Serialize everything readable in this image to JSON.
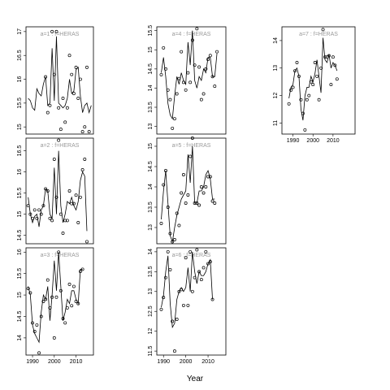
{
  "xlabel": "Year",
  "chart_data": [
    {
      "type": "line",
      "title": "a=1 : f=HERAS",
      "x": [
        1988,
        1989,
        1990,
        1991,
        1992,
        1993,
        1994,
        1995,
        1996,
        1997,
        1998,
        1999,
        2000,
        2001,
        2002,
        2003,
        2004,
        2005,
        2006,
        2007,
        2008,
        2009,
        2010,
        2011,
        2012,
        2013,
        2014,
        2015,
        2016,
        2017
      ],
      "xlim": [
        1987,
        2018
      ],
      "ylim": [
        14.85,
        17.1
      ],
      "yticks": [
        15.0,
        15.5,
        16.0,
        16.5,
        17.0
      ],
      "series": [
        {
          "style": "points",
          "color": "#000000",
          "values": [
            null,
            null,
            null,
            null,
            null,
            null,
            null,
            null,
            16.05,
            15.3,
            15.45,
            17.0,
            16.1,
            17.0,
            15.4,
            14.95,
            15.6,
            15.1,
            15.4,
            16.5,
            16.1,
            15.7,
            16.25,
            15.6,
            16.0,
            14.9,
            15.0,
            16.25,
            14.9,
            null
          ]
        },
        {
          "style": "line",
          "color": "#000000",
          "values": [
            15.6,
            15.55,
            15.4,
            15.35,
            15.8,
            15.7,
            15.65,
            15.9,
            16.05,
            15.45,
            15.5,
            16.65,
            15.55,
            16.9,
            15.5,
            15.45,
            15.4,
            15.45,
            15.6,
            16.0,
            15.7,
            15.75,
            16.2,
            16.25,
            15.65,
            15.3,
            15.45,
            15.5,
            15.3,
            15.45
          ]
        }
      ]
    },
    {
      "type": "line",
      "title": "a=2 : f=HERAS",
      "x": [
        1988,
        1989,
        1990,
        1991,
        1992,
        1993,
        1994,
        1995,
        1996,
        1997,
        1998,
        1999,
        2000,
        2001,
        2002,
        2003,
        2004,
        2005,
        2006,
        2007,
        2008,
        2009,
        2010,
        2011,
        2012,
        2013,
        2014,
        2015,
        2016,
        2017
      ],
      "xlim": [
        1987,
        2018
      ],
      "ylim": [
        14.3,
        16.8
      ],
      "yticks": [
        14.5,
        15.0,
        15.5,
        16.0,
        16.5
      ],
      "series": [
        {
          "style": "points",
          "color": "#000000",
          "values": [
            15.2,
            15.0,
            14.9,
            15.1,
            14.9,
            15.1,
            15.0,
            15.2,
            15.6,
            15.55,
            14.9,
            14.85,
            16.3,
            15.4,
            16.75,
            15.0,
            14.55,
            14.85,
            14.85,
            15.55,
            15.25,
            15.25,
            15.45,
            14.8,
            15.4,
            16.05,
            16.3,
            14.35,
            null,
            null
          ]
        },
        {
          "style": "line",
          "color": "#000000",
          "values": [
            15.4,
            15.0,
            14.8,
            14.95,
            15.0,
            14.7,
            15.1,
            15.2,
            15.6,
            15.55,
            15.0,
            14.9,
            16.1,
            15.0,
            16.5,
            15.2,
            14.8,
            15.0,
            15.3,
            15.25,
            15.4,
            15.2,
            15.1,
            15.3,
            15.8,
            16.0,
            15.9,
            14.6,
            null,
            null
          ]
        }
      ]
    },
    {
      "type": "line",
      "title": "a=3 : f=HERAS",
      "x": [
        1988,
        1989,
        1990,
        1991,
        1992,
        1993,
        1994,
        1995,
        1996,
        1997,
        1998,
        1999,
        2000,
        2001,
        2002,
        2003,
        2004,
        2005,
        2006,
        2007,
        2008,
        2009,
        2010,
        2011,
        2012,
        2013,
        2014,
        2015,
        2016,
        2017
      ],
      "xlim": [
        1987,
        2018
      ],
      "ylim": [
        13.6,
        16.1
      ],
      "yticks": [
        14.0,
        14.5,
        15.0,
        15.5,
        16.0
      ],
      "xticks": [
        1990,
        2000,
        2010
      ],
      "series": [
        {
          "style": "points",
          "color": "#000000",
          "values": [
            15.15,
            15.05,
            14.35,
            14.15,
            14.3,
            13.65,
            14.5,
            14.85,
            14.9,
            15.35,
            14.7,
            14.95,
            14.0,
            14.95,
            16.0,
            15.1,
            14.45,
            14.35,
            14.7,
            15.25,
            14.75,
            15.2,
            14.85,
            14.8,
            15.55,
            15.6,
            null,
            null,
            null,
            null
          ]
        },
        {
          "style": "line",
          "color": "#000000",
          "values": [
            15.2,
            15.0,
            14.3,
            14.1,
            14.0,
            13.9,
            14.6,
            15.0,
            14.9,
            15.2,
            14.4,
            15.0,
            15.8,
            15.1,
            16.0,
            15.2,
            14.4,
            14.6,
            14.9,
            14.8,
            15.1,
            15.1,
            14.9,
            14.8,
            15.6,
            15.6,
            null,
            null,
            null,
            null
          ]
        }
      ]
    },
    {
      "type": "line",
      "title": "a=4 : f=HERAS",
      "x": [
        1988,
        1989,
        1990,
        1991,
        1992,
        1993,
        1994,
        1995,
        1996,
        1997,
        1998,
        1999,
        2000,
        2001,
        2002,
        2003,
        2004,
        2005,
        2006,
        2007,
        2008,
        2009,
        2010,
        2011,
        2012,
        2013,
        2014,
        2015,
        2016,
        2017
      ],
      "xlim": [
        1987,
        2018
      ],
      "ylim": [
        12.8,
        15.6
      ],
      "yticks": [
        13.0,
        13.5,
        14.0,
        14.5,
        15.0,
        15.5
      ],
      "series": [
        {
          "style": "points",
          "color": "#000000",
          "values": [
            null,
            14.35,
            15.05,
            14.5,
            13.95,
            13.7,
            12.95,
            13.2,
            13.85,
            14.25,
            14.95,
            14.15,
            13.95,
            14.4,
            14.15,
            15.25,
            14.6,
            15.55,
            14.55,
            13.7,
            13.85,
            14.5,
            14.75,
            14.85,
            14.3,
            14.05,
            14.95,
            null,
            null,
            null
          ]
        },
        {
          "style": "line",
          "color": "#000000",
          "values": [
            null,
            14.4,
            14.8,
            14.3,
            13.6,
            13.3,
            13.2,
            13.8,
            14.3,
            14.1,
            14.4,
            14.2,
            14.1,
            15.2,
            14.6,
            15.5,
            14.2,
            14.0,
            14.3,
            14.2,
            14.5,
            14.4,
            14.8,
            14.8,
            14.3,
            14.3,
            14.9,
            null,
            null,
            null
          ]
        }
      ]
    },
    {
      "type": "line",
      "title": "a=5 : f=HERAS",
      "x": [
        1988,
        1989,
        1990,
        1991,
        1992,
        1993,
        1994,
        1995,
        1996,
        1997,
        1998,
        1999,
        2000,
        2001,
        2002,
        2003,
        2004,
        2005,
        2006,
        2007,
        2008,
        2009,
        2010,
        2011,
        2012,
        2013,
        2014,
        2015,
        2016,
        2017
      ],
      "xlim": [
        1987,
        2018
      ],
      "ylim": [
        12.6,
        15.2
      ],
      "yticks": [
        13.0,
        13.5,
        14.0,
        14.5,
        15.0
      ],
      "series": [
        {
          "style": "points",
          "color": "#000000",
          "values": [
            null,
            13.1,
            14.05,
            14.4,
            13.5,
            12.85,
            12.65,
            12.7,
            13.35,
            13.05,
            13.85,
            14.3,
            13.6,
            13.8,
            14.75,
            15.2,
            13.6,
            13.6,
            13.55,
            14.0,
            13.85,
            14.0,
            14.25,
            14.25,
            13.65,
            13.6,
            null,
            null,
            null,
            null
          ]
        },
        {
          "style": "line",
          "color": "#000000",
          "values": [
            null,
            13.2,
            13.9,
            14.4,
            13.6,
            12.8,
            12.65,
            13.0,
            13.3,
            13.5,
            13.7,
            13.8,
            13.9,
            14.8,
            14.1,
            15.0,
            13.6,
            13.6,
            13.9,
            13.9,
            14.0,
            14.3,
            14.4,
            14.2,
            13.7,
            13.7,
            null,
            null,
            null,
            null
          ]
        }
      ]
    },
    {
      "type": "line",
      "title": "a=6 : f=HERAS",
      "x": [
        1988,
        1989,
        1990,
        1991,
        1992,
        1993,
        1994,
        1995,
        1996,
        1997,
        1998,
        1999,
        2000,
        2001,
        2002,
        2003,
        2004,
        2005,
        2006,
        2007,
        2008,
        2009,
        2010,
        2011,
        2012,
        2013,
        2014,
        2015,
        2016,
        2017
      ],
      "xlim": [
        1987,
        2018
      ],
      "ylim": [
        11.4,
        14.1
      ],
      "yticks": [
        11.5,
        12.0,
        12.5,
        13.0,
        13.5,
        14.0
      ],
      "xticks": [
        1990,
        2000,
        2010
      ],
      "series": [
        {
          "style": "points",
          "color": "#000000",
          "values": [
            null,
            12.55,
            12.85,
            13.35,
            14.0,
            13.55,
            12.25,
            11.5,
            12.3,
            13.0,
            13.05,
            12.65,
            13.85,
            12.65,
            14.0,
            13.0,
            13.35,
            14.05,
            13.5,
            13.3,
            13.6,
            14.0,
            13.7,
            13.75,
            12.8,
            null,
            null,
            null,
            null,
            null
          ]
        },
        {
          "style": "line",
          "color": "#000000",
          "values": [
            null,
            12.6,
            12.9,
            13.5,
            13.9,
            12.7,
            12.1,
            12.2,
            12.8,
            13.0,
            13.1,
            13.0,
            13.1,
            13.6,
            13.0,
            14.0,
            13.5,
            13.2,
            13.5,
            13.4,
            13.4,
            13.5,
            13.7,
            13.8,
            12.8,
            null,
            null,
            null,
            null,
            null
          ]
        }
      ]
    },
    {
      "type": "line",
      "title": "a=7 : f=HERAS",
      "x": [
        1988,
        1989,
        1990,
        1991,
        1992,
        1993,
        1994,
        1995,
        1996,
        1997,
        1998,
        1999,
        2000,
        2001,
        2002,
        2003,
        2004,
        2005,
        2006,
        2007,
        2008,
        2009,
        2010,
        2011,
        2012,
        2013,
        2014,
        2015,
        2016,
        2017
      ],
      "xlim": [
        1984.5,
        2021
      ],
      "ylim": [
        10.6,
        14.5
      ],
      "yticks": [
        11,
        12,
        13,
        14
      ],
      "xticks": [
        1990,
        2000,
        2010
      ],
      "series": [
        {
          "style": "points",
          "color": "#000000",
          "values": [
            11.7,
            12.2,
            12.3,
            12.9,
            13.2,
            12.7,
            11.85,
            11.35,
            10.75,
            11.85,
            12.0,
            12.5,
            12.4,
            13.2,
            12.7,
            11.85,
            13.0,
            14.4,
            13.4,
            13.4,
            13.45,
            12.4,
            13.4,
            13.1,
            12.6,
            null,
            null,
            null,
            null,
            null
          ]
        },
        {
          "style": "line",
          "color": "#000000",
          "values": [
            11.9,
            12.3,
            12.4,
            12.9,
            13.0,
            12.7,
            11.5,
            11.1,
            12.0,
            12.3,
            12.3,
            12.7,
            12.5,
            12.8,
            13.3,
            12.7,
            12.1,
            14.1,
            13.3,
            13.2,
            13.5,
            13.0,
            13.2,
            13.1,
            12.9,
            null,
            null,
            null,
            null,
            null
          ]
        }
      ]
    }
  ]
}
